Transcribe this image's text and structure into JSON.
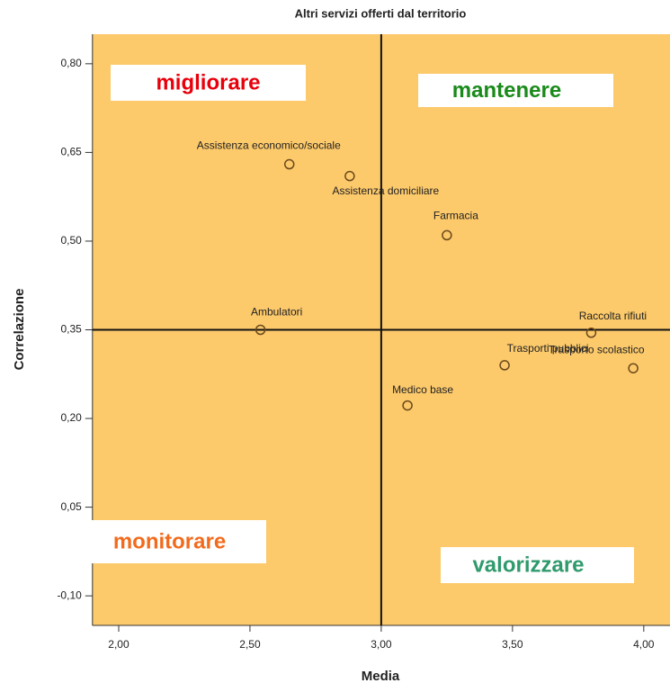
{
  "chart_data": {
    "type": "scatter",
    "title": "Altri servizi offerti dal territorio",
    "xlabel": "Media",
    "ylabel": "Correlazione",
    "xlim": [
      1.9,
      4.1
    ],
    "ylim": [
      -0.15,
      0.85
    ],
    "xticks": [
      {
        "value": 2.0,
        "label": "2,00"
      },
      {
        "value": 2.5,
        "label": "2,50"
      },
      {
        "value": 3.0,
        "label": "3,00"
      },
      {
        "value": 3.5,
        "label": "3,50"
      },
      {
        "value": 4.0,
        "label": "4,00"
      }
    ],
    "yticks": [
      {
        "value": -0.1,
        "label": "-0,10"
      },
      {
        "value": 0.05,
        "label": "0,05"
      },
      {
        "value": 0.2,
        "label": "0,20"
      },
      {
        "value": 0.35,
        "label": "0,35"
      },
      {
        "value": 0.5,
        "label": "0,50"
      },
      {
        "value": 0.65,
        "label": "0,65"
      },
      {
        "value": 0.8,
        "label": "0,80"
      }
    ],
    "vline": 3.0,
    "hline": 0.35,
    "background": "#fcc96b",
    "marker_color": "#6b4a1a",
    "points": {
      "labels": [
        "Assistenza economico/sociale",
        "Assistenza domiciliare",
        "Farmacia",
        "Ambulatori",
        "Raccolta rifiuti",
        "Trasporto scolastico",
        "Trasporti pubblici",
        "Medico base"
      ],
      "x": [
        2.65,
        2.88,
        3.25,
        2.54,
        3.8,
        3.96,
        3.47,
        3.1
      ],
      "y": [
        0.63,
        0.61,
        0.51,
        0.35,
        0.345,
        0.285,
        0.29,
        0.222
      ]
    },
    "annotations": [
      {
        "text": "migliorare",
        "color": "#e8000b"
      },
      {
        "text": "mantenere",
        "color": "#1a8a1a"
      },
      {
        "text": "monitorare",
        "color": "#f26b1d"
      },
      {
        "text": "valorizzare",
        "color": "#2f9a6c"
      }
    ]
  }
}
